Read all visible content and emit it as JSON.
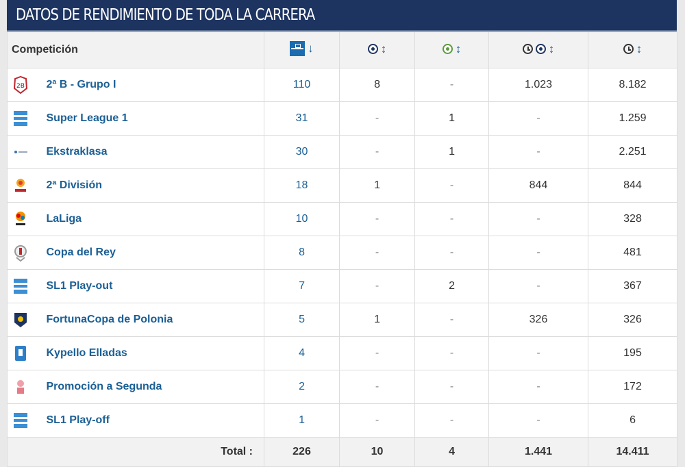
{
  "title": "DATOS DE RENDIMIENTO DE TODA LA CARRERA",
  "headers": {
    "competition": "Competición",
    "apps_icon": "pitch-icon",
    "goals_icon": "ball-icon",
    "assists_icon": "assist-ball-icon",
    "mins_per_goal_icon": "clock-ball-icon",
    "minutes_icon": "clock-icon",
    "sort_desc": "↓",
    "sort_both": "↕"
  },
  "rows": [
    {
      "name": "2ª B - Grupo I",
      "logo": "segunda-b-logo",
      "apps": "110",
      "goals": "8",
      "assists": "-",
      "mpg": "1.023",
      "minutes": "8.182"
    },
    {
      "name": "Super League 1",
      "logo": "super-league-logo",
      "apps": "31",
      "goals": "-",
      "assists": "1",
      "mpg": "-",
      "minutes": "1.259"
    },
    {
      "name": "Ekstraklasa",
      "logo": "ekstraklasa-logo",
      "apps": "30",
      "goals": "-",
      "assists": "1",
      "mpg": "-",
      "minutes": "2.251"
    },
    {
      "name": "2ª División",
      "logo": "segunda-division-logo",
      "apps": "18",
      "goals": "1",
      "assists": "-",
      "mpg": "844",
      "minutes": "844"
    },
    {
      "name": "LaLiga",
      "logo": "laliga-logo",
      "apps": "10",
      "goals": "-",
      "assists": "-",
      "mpg": "-",
      "minutes": "328"
    },
    {
      "name": "Copa del Rey",
      "logo": "copa-del-rey-logo",
      "apps": "8",
      "goals": "-",
      "assists": "-",
      "mpg": "-",
      "minutes": "481"
    },
    {
      "name": "SL1 Play-out",
      "logo": "super-league-logo",
      "apps": "7",
      "goals": "-",
      "assists": "2",
      "mpg": "-",
      "minutes": "367"
    },
    {
      "name": "FortunaCopa de Polonia",
      "logo": "fortuna-cup-logo",
      "apps": "5",
      "goals": "1",
      "assists": "-",
      "mpg": "326",
      "minutes": "326"
    },
    {
      "name": "Kypello Elladas",
      "logo": "kypello-logo",
      "apps": "4",
      "goals": "-",
      "assists": "-",
      "mpg": "-",
      "minutes": "195"
    },
    {
      "name": "Promoción a Segunda",
      "logo": "promocion-logo",
      "apps": "2",
      "goals": "-",
      "assists": "-",
      "mpg": "-",
      "minutes": "172"
    },
    {
      "name": "SL1 Play-off",
      "logo": "super-league-logo",
      "apps": "1",
      "goals": "-",
      "assists": "-",
      "mpg": "-",
      "minutes": "6"
    }
  ],
  "totals": {
    "label": "Total :",
    "apps": "226",
    "goals": "10",
    "assists": "4",
    "mpg": "1.441",
    "minutes": "14.411"
  },
  "colors": {
    "header_bg": "#1d3461",
    "link": "#1a5f95",
    "row_border": "#dcdcdc",
    "thead_bg": "#f2f2f2"
  }
}
